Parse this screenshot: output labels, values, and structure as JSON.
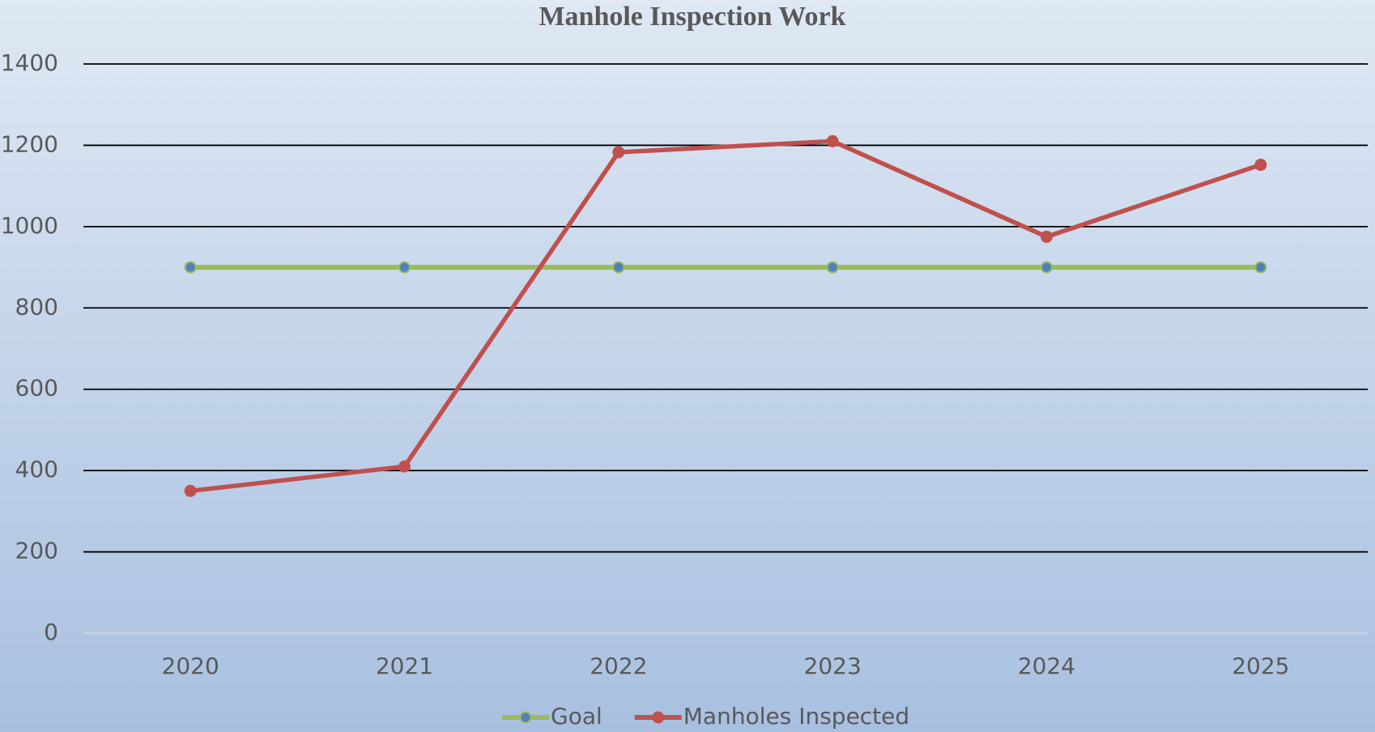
{
  "chart_data": {
    "type": "line",
    "title": "Manhole Inspection Work",
    "categories": [
      "2020",
      "2021",
      "2022",
      "2023",
      "2024",
      "2025"
    ],
    "series": [
      {
        "name": "Goal",
        "color": "#9bbb59",
        "marker_color": "#4f81bd",
        "values": [
          900,
          900,
          900,
          900,
          900,
          900
        ]
      },
      {
        "name": "Manholes Inspected",
        "color": "#c0504d",
        "marker_color": "#c0504d",
        "values": [
          350,
          410,
          1183,
          1210,
          975,
          1152
        ]
      }
    ],
    "ylim": [
      0,
      1400
    ],
    "yticks": [
      0,
      200,
      400,
      600,
      800,
      1000,
      1200,
      1400
    ],
    "grid": true,
    "legend": "bottom"
  }
}
